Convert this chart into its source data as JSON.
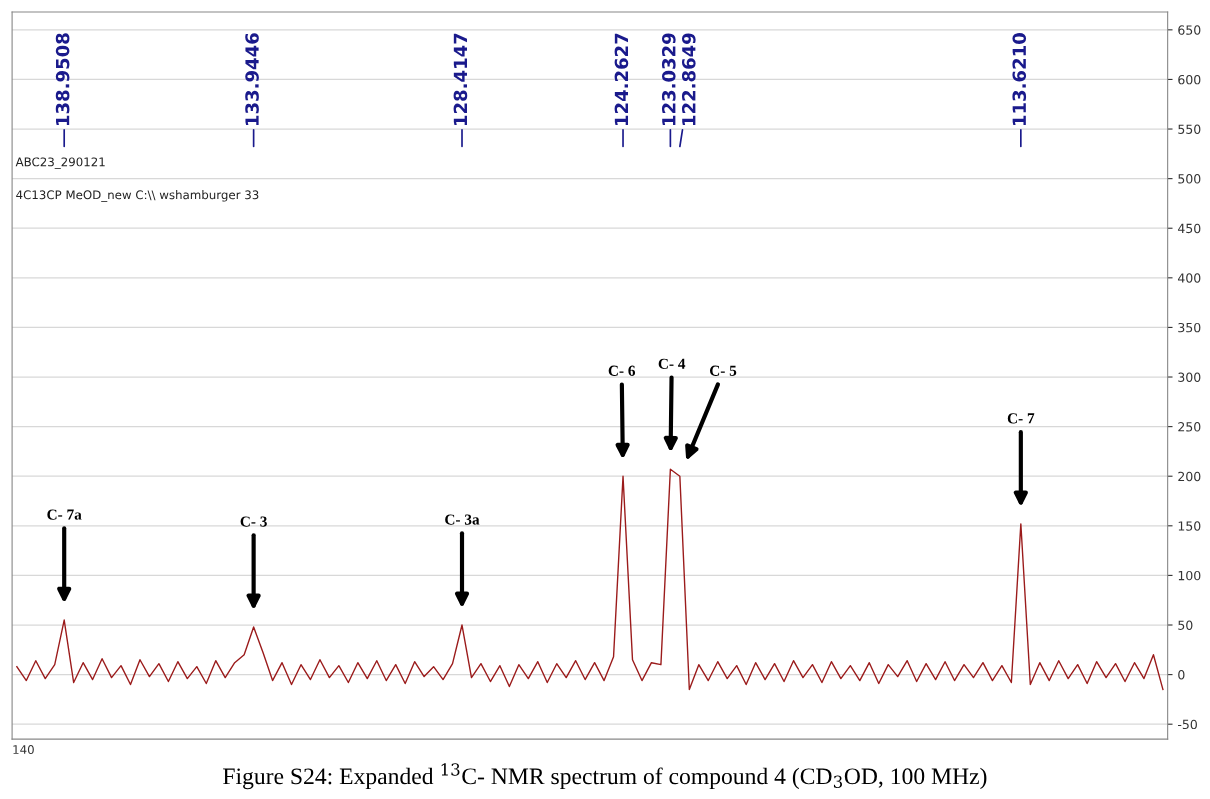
{
  "chart_data": {
    "type": "line",
    "categories": [
      null,
      null,
      null,
      null,
      null,
      null,
      null,
      null,
      null,
      null,
      null,
      null,
      null,
      null,
      null,
      null,
      null,
      null,
      null,
      null,
      null,
      null,
      null,
      null,
      null,
      null,
      null,
      null,
      null,
      null,
      null,
      null,
      null,
      null,
      null,
      null,
      null,
      null,
      null,
      null,
      null,
      null,
      null,
      null,
      null,
      null,
      null,
      null,
      null,
      null,
      null,
      null,
      null,
      null,
      null,
      null,
      null,
      null,
      null,
      null,
      null,
      null,
      null,
      null,
      null,
      null,
      null,
      null,
      null,
      null,
      null,
      null,
      null,
      null,
      null,
      null,
      null,
      null,
      null,
      null,
      null,
      null,
      null,
      null,
      null,
      null,
      null,
      null,
      null,
      null,
      null,
      null,
      null,
      null,
      null,
      null,
      null,
      null,
      null,
      null,
      null,
      null,
      null,
      null,
      null,
      null,
      null,
      null,
      null,
      null,
      null,
      null,
      null,
      null,
      null,
      null,
      null,
      null,
      null,
      null,
      null,
      null
    ],
    "series": [
      {
        "color": "#9b1b1b",
        "values": [
          8,
          -6,
          14,
          -4,
          10,
          55,
          -8,
          12,
          -5,
          16,
          -3,
          9,
          -10,
          15,
          -2,
          11,
          -7,
          13,
          -4,
          8,
          -9,
          14,
          -3,
          12,
          20,
          48,
          22,
          -6,
          12,
          -10,
          10,
          -5,
          15,
          -3,
          9,
          -8,
          12,
          -4,
          14,
          -6,
          10,
          -9,
          13,
          -2,
          8,
          -5,
          11,
          50,
          -3,
          11,
          -7,
          9,
          -12,
          10,
          -4,
          13,
          -8,
          11,
          -3,
          14,
          -5,
          12,
          -6,
          18,
          200,
          15,
          -6,
          12,
          10,
          207,
          200,
          -15,
          10,
          -6,
          13,
          -4,
          9,
          -10,
          12,
          -5,
          11,
          -7,
          14,
          -3,
          10,
          -8,
          13,
          -4,
          9,
          -6,
          12,
          -9,
          10,
          -2,
          14,
          -7,
          11,
          -5,
          13,
          -6,
          10,
          -3,
          12,
          -6,
          9,
          -8,
          152,
          -10,
          12,
          -6,
          14,
          -4,
          10,
          -9,
          13,
          -3,
          11,
          -7,
          12,
          -4,
          20,
          -15
        ]
      }
    ],
    "ylim": [
      -65,
      668
    ],
    "yticks": [
      -50,
      0,
      50,
      100,
      150,
      200,
      250,
      300,
      350,
      400,
      450,
      500,
      550,
      600,
      650
    ],
    "grid": "y",
    "line_style": "solid",
    "marker": "none",
    "annotations": [
      "ABC23_290121",
      "4C13CP MeOD_new C:\\\\ wshamburger 33",
      "138.9508",
      "133.9446",
      "128.4147",
      "124.2627",
      "123.0329",
      "122.8649",
      "113.6210",
      "C- 7a",
      "C- 3",
      "C- 3a",
      "C- 6",
      "C- 4",
      "C- 5",
      "C- 7",
      "140",
      "Figure S24: Expanded $^{13}$C- NMR spectrum of compound 4 (CD$_{3}$OD, 100 MHz)"
    ]
  }
}
